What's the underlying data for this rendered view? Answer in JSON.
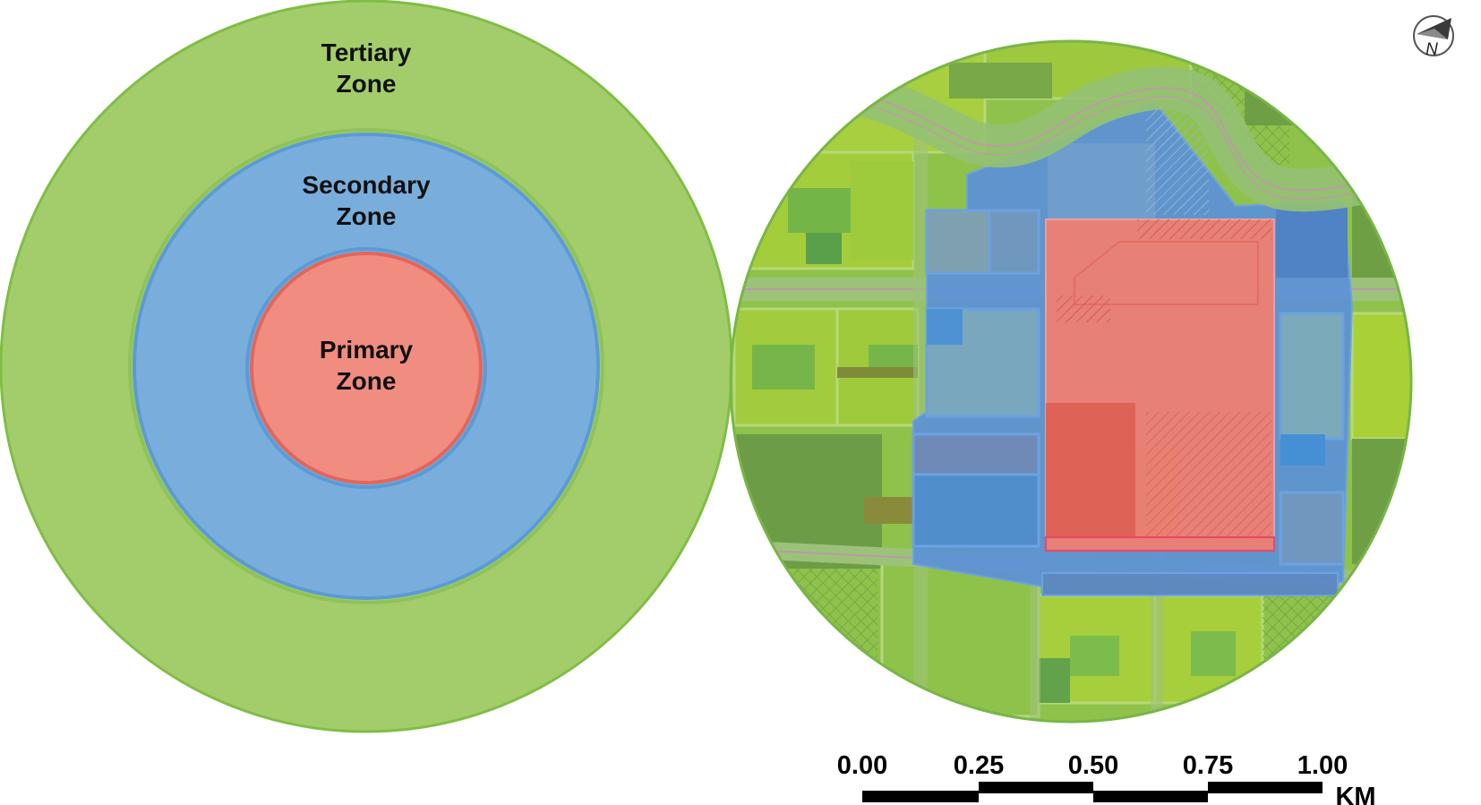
{
  "zone_diagram": {
    "zones": [
      {
        "key": "tertiary",
        "line1": "Tertiary",
        "line2": "Zone",
        "fill": "#a3cd6a",
        "stroke": "#7fbe45"
      },
      {
        "key": "secondary",
        "line1": "Secondary",
        "line2": "Zone",
        "fill": "#79aedc",
        "stroke": "#5b9bd5"
      },
      {
        "key": "primary",
        "line1": "Primary",
        "line2": "Zone",
        "fill": "#f08c80",
        "stroke": "#e3655a"
      }
    ]
  },
  "map": {
    "north_arrow": {
      "letter": "N",
      "icon": "north-arrow-icon"
    },
    "colors": {
      "background_green": "#8fc24a",
      "dark_green": "#6e9f45",
      "road_green": "#9cc27a",
      "secondary_blue": "#5c92d8",
      "primary_red": "#ef7f72",
      "outline": "#78b646"
    },
    "scale_bar": {
      "ticks": [
        "0.00",
        "0.25",
        "0.50",
        "0.75",
        "1.00"
      ],
      "unit": "KM"
    }
  }
}
